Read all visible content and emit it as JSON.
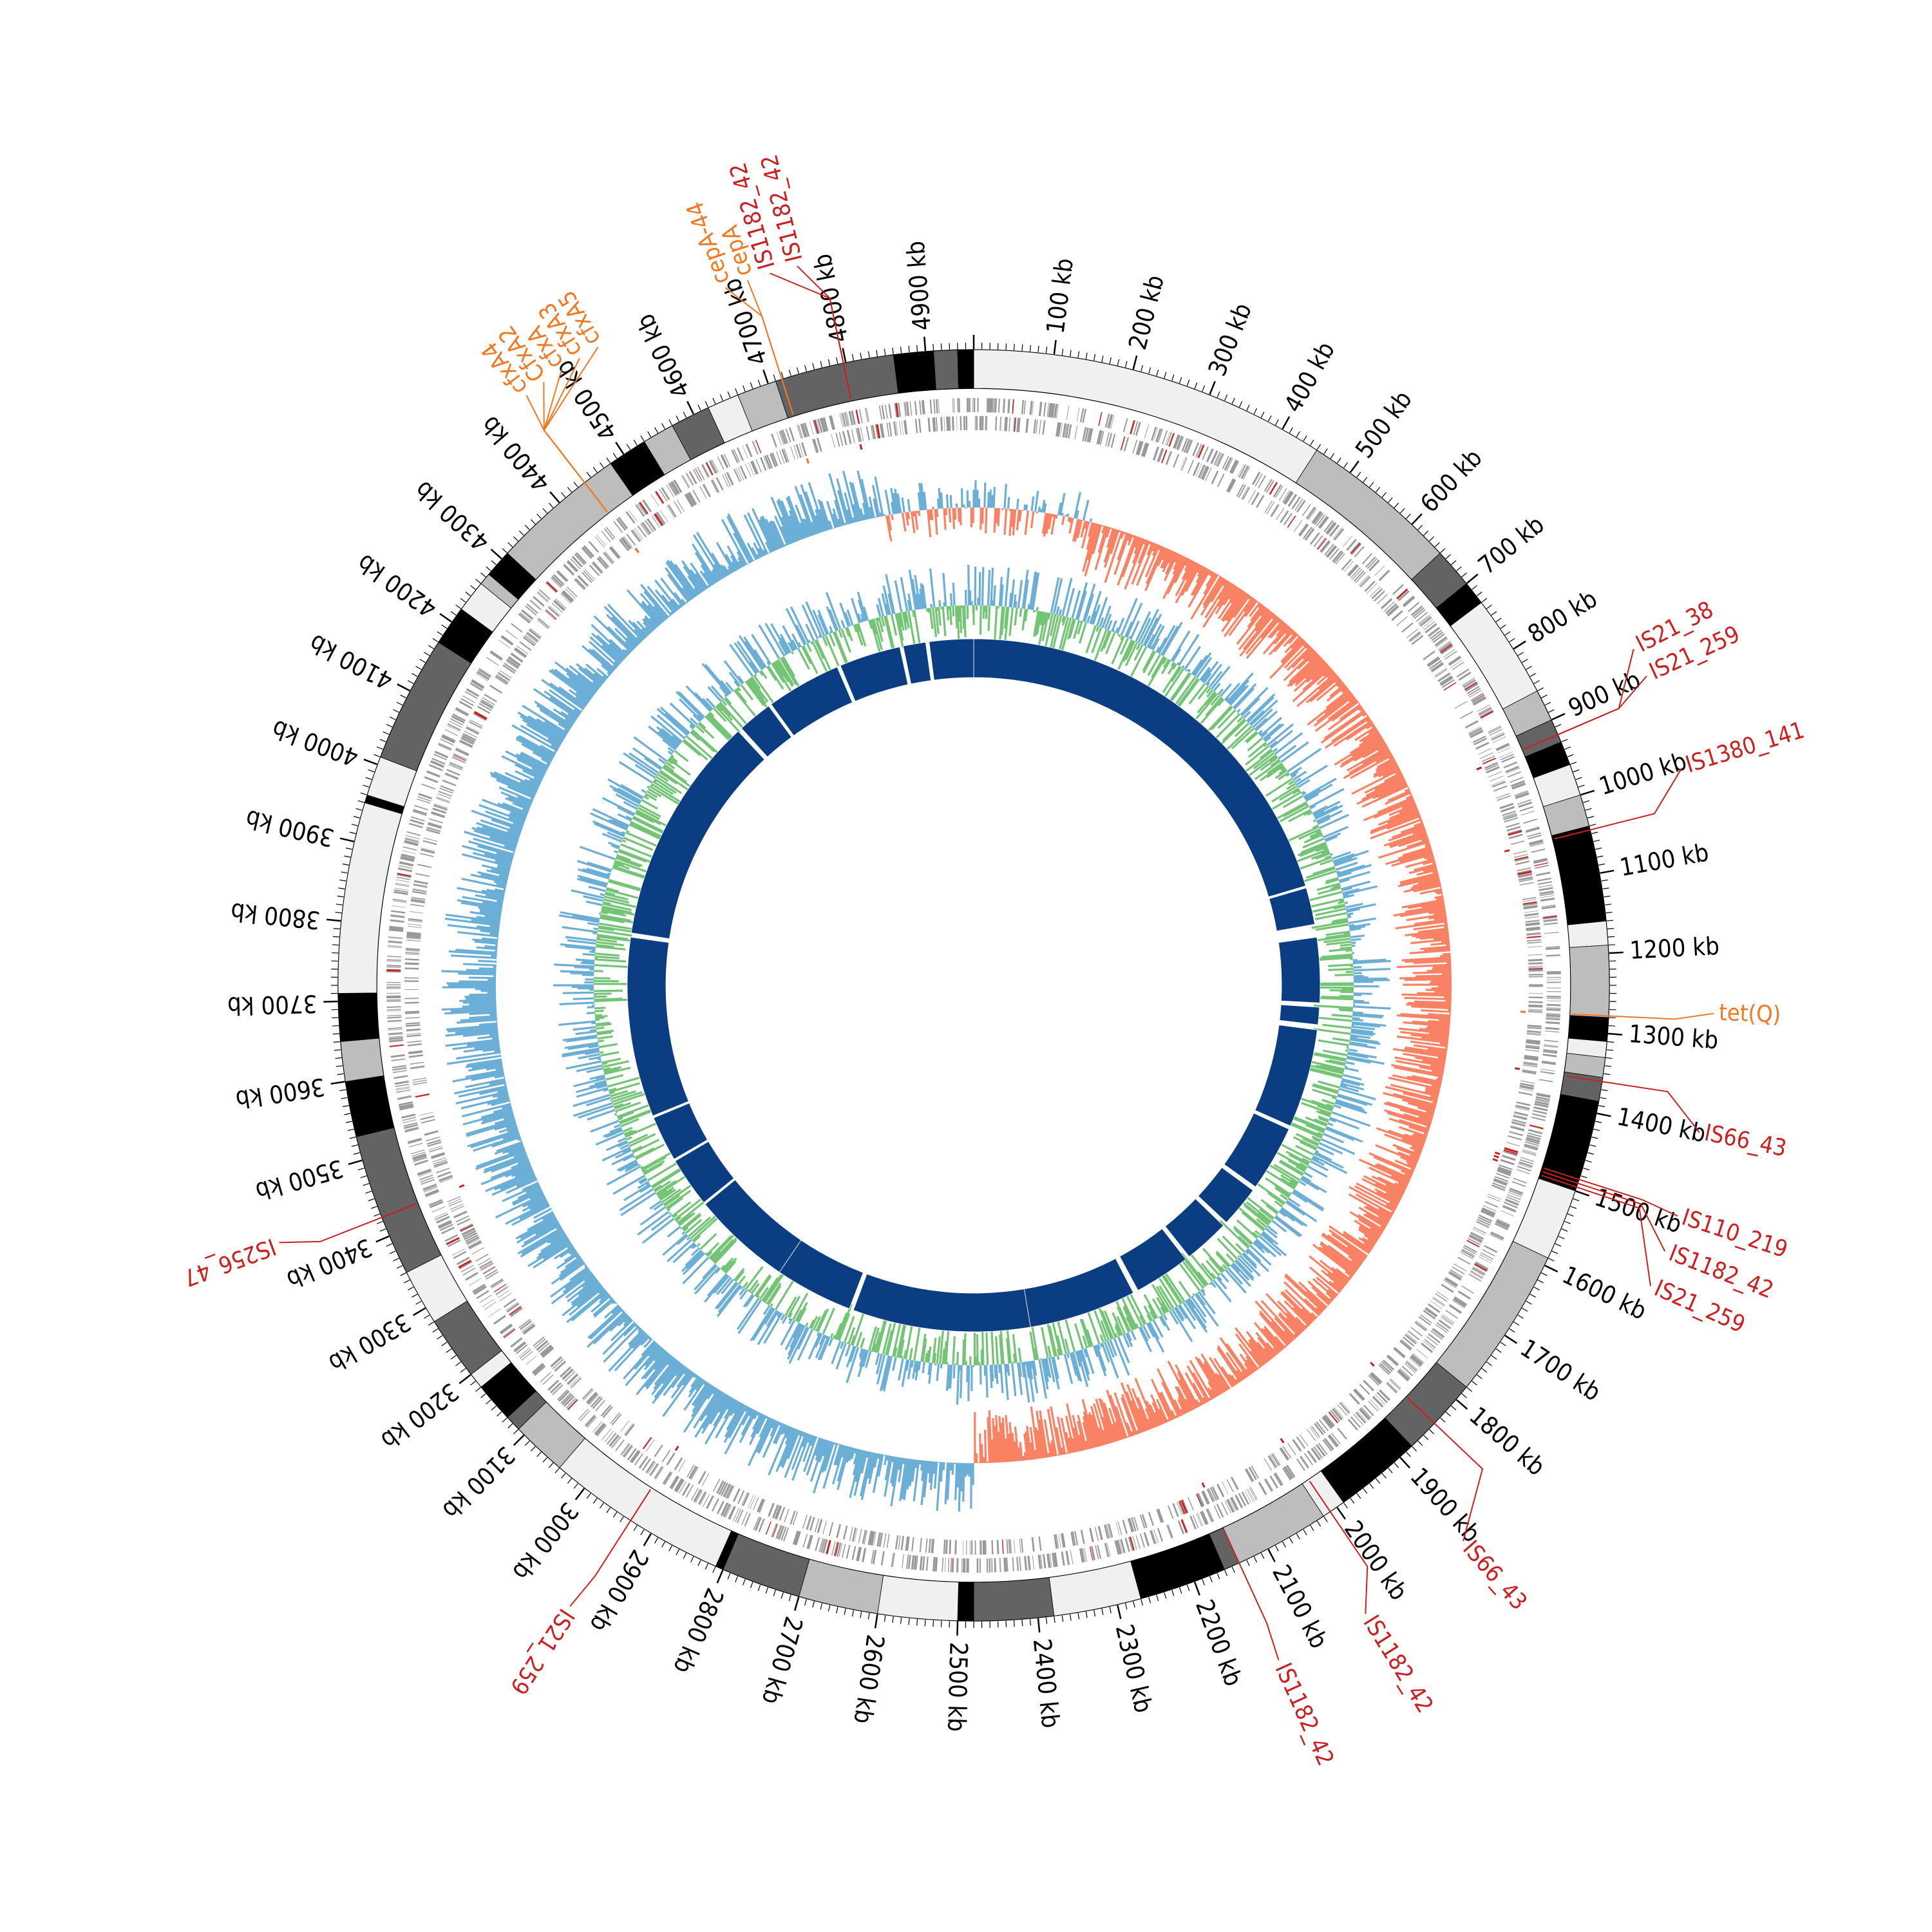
{
  "genome": {
    "length_kb": 4960,
    "scale_labels": [
      "100 kb",
      "200 kb",
      "300 kb",
      "400 kb",
      "500 kb",
      "600 kb",
      "700 kb",
      "800 kb",
      "900 kb",
      "1000 kb",
      "1100 kb",
      "1200 kb",
      "1300 kb",
      "1400 kb",
      "1500 kb",
      "1600 kb",
      "1700 kb",
      "1800 kb",
      "1900 kb",
      "2000 kb",
      "2100 kb",
      "2200 kb",
      "2300 kb",
      "2400 kb",
      "2500 kb",
      "2600 kb",
      "2700 kb",
      "2800 kb",
      "2900 kb",
      "3000 kb",
      "3100 kb",
      "3200 kb",
      "3300 kb",
      "3400 kb",
      "3500 kb",
      "3600 kb",
      "3700 kb",
      "3800 kb",
      "3900 kb",
      "4000 kb",
      "4100 kb",
      "4200 kb",
      "4300 kb",
      "4400 kb",
      "4500 kb",
      "4600 kb",
      "4700 kb",
      "4800 kb",
      "4900 kb"
    ]
  },
  "colors": {
    "is_element": "#cc1f1f",
    "resistance_gene": "#f07820",
    "gc_skew_negative": "#fa8264",
    "gc_skew_positive": "#6baed6",
    "gc_content_low": "#74c476",
    "gc_content_high": "#6baed6",
    "alignment_block": "#0a3d82",
    "gene_track": "#999999"
  },
  "contig_bands": [
    {
      "start": 0,
      "end": 450,
      "shade": "#f0f0f0"
    },
    {
      "start": 450,
      "end": 650,
      "shade": "#bdbdbd"
    },
    {
      "start": 650,
      "end": 700,
      "shade": "#636363"
    },
    {
      "start": 700,
      "end": 730,
      "shade": "#000000"
    },
    {
      "start": 730,
      "end": 860,
      "shade": "#f0f0f0"
    },
    {
      "start": 860,
      "end": 900,
      "shade": "#bdbdbd"
    },
    {
      "start": 900,
      "end": 930,
      "shade": "#636363"
    },
    {
      "start": 930,
      "end": 960,
      "shade": "#000000"
    },
    {
      "start": 960,
      "end": 1000,
      "shade": "#f0f0f0"
    },
    {
      "start": 1000,
      "end": 1040,
      "shade": "#bdbdbd"
    },
    {
      "start": 1040,
      "end": 1160,
      "shade": "#000000"
    },
    {
      "start": 1160,
      "end": 1190,
      "shade": "#f0f0f0"
    },
    {
      "start": 1190,
      "end": 1280,
      "shade": "#bdbdbd"
    },
    {
      "start": 1280,
      "end": 1310,
      "shade": "#000000"
    },
    {
      "start": 1310,
      "end": 1330,
      "shade": "#f0f0f0"
    },
    {
      "start": 1330,
      "end": 1355,
      "shade": "#bdbdbd"
    },
    {
      "start": 1355,
      "end": 1385,
      "shade": "#636363"
    },
    {
      "start": 1385,
      "end": 1500,
      "shade": "#000000"
    },
    {
      "start": 1500,
      "end": 1590,
      "shade": "#f0f0f0"
    },
    {
      "start": 1590,
      "end": 1780,
      "shade": "#bdbdbd"
    },
    {
      "start": 1780,
      "end": 1880,
      "shade": "#636363"
    },
    {
      "start": 1880,
      "end": 1990,
      "shade": "#000000"
    },
    {
      "start": 1990,
      "end": 2020,
      "shade": "#f0f0f0"
    },
    {
      "start": 2020,
      "end": 2140,
      "shade": "#bdbdbd"
    },
    {
      "start": 2140,
      "end": 2160,
      "shade": "#636363"
    },
    {
      "start": 2160,
      "end": 2270,
      "shade": "#000000"
    },
    {
      "start": 2270,
      "end": 2380,
      "shade": "#f0f0f0"
    },
    {
      "start": 2380,
      "end": 2480,
      "shade": "#636363"
    },
    {
      "start": 2480,
      "end": 2500,
      "shade": "#000000"
    },
    {
      "start": 2500,
      "end": 2600,
      "shade": "#f0f0f0"
    },
    {
      "start": 2600,
      "end": 2700,
      "shade": "#bdbdbd"
    },
    {
      "start": 2700,
      "end": 2800,
      "shade": "#636363"
    },
    {
      "start": 2800,
      "end": 2810,
      "shade": "#000000"
    },
    {
      "start": 2810,
      "end": 3040,
      "shade": "#f0f0f0"
    },
    {
      "start": 3040,
      "end": 3110,
      "shade": "#bdbdbd"
    },
    {
      "start": 3110,
      "end": 3130,
      "shade": "#636363"
    },
    {
      "start": 3130,
      "end": 3180,
      "shade": "#000000"
    },
    {
      "start": 3180,
      "end": 3200,
      "shade": "#f0f0f0"
    },
    {
      "start": 3200,
      "end": 3280,
      "shade": "#636363"
    },
    {
      "start": 3280,
      "end": 3350,
      "shade": "#f0f0f0"
    },
    {
      "start": 3350,
      "end": 3530,
      "shade": "#636363"
    },
    {
      "start": 3530,
      "end": 3600,
      "shade": "#000000"
    },
    {
      "start": 3600,
      "end": 3650,
      "shade": "#bdbdbd"
    },
    {
      "start": 3650,
      "end": 3710,
      "shade": "#000000"
    },
    {
      "start": 3710,
      "end": 3950,
      "shade": "#f0f0f0"
    },
    {
      "start": 3950,
      "end": 3960,
      "shade": "#000000"
    },
    {
      "start": 3960,
      "end": 4010,
      "shade": "#f0f0f0"
    },
    {
      "start": 4010,
      "end": 4170,
      "shade": "#636363"
    },
    {
      "start": 4170,
      "end": 4220,
      "shade": "#000000"
    },
    {
      "start": 4220,
      "end": 4260,
      "shade": "#f0f0f0"
    },
    {
      "start": 4260,
      "end": 4275,
      "shade": "#bdbdbd"
    },
    {
      "start": 4275,
      "end": 4310,
      "shade": "#000000"
    },
    {
      "start": 4310,
      "end": 4480,
      "shade": "#bdbdbd"
    },
    {
      "start": 4480,
      "end": 4530,
      "shade": "#000000"
    },
    {
      "start": 4530,
      "end": 4570,
      "shade": "#bdbdbd"
    },
    {
      "start": 4570,
      "end": 4620,
      "shade": "#636363"
    },
    {
      "start": 4620,
      "end": 4660,
      "shade": "#f0f0f0"
    },
    {
      "start": 4660,
      "end": 4710,
      "shade": "#bdbdbd"
    },
    {
      "start": 4710,
      "end": 4860,
      "shade": "#636363"
    },
    {
      "start": 4860,
      "end": 4910,
      "shade": "#000000"
    },
    {
      "start": 4910,
      "end": 4940,
      "shade": "#636363"
    },
    {
      "start": 4940,
      "end": 4960,
      "shade": "#000000"
    }
  ],
  "alignment_blocks": [
    {
      "start": 0,
      "end": 1010
    },
    {
      "start": 1015,
      "end": 1100
    },
    {
      "start": 1130,
      "end": 1280
    },
    {
      "start": 1290,
      "end": 1330
    },
    {
      "start": 1342,
      "end": 1570
    },
    {
      "start": 1578,
      "end": 1730
    },
    {
      "start": 1740,
      "end": 1835
    },
    {
      "start": 1845,
      "end": 1950
    },
    {
      "start": 1960,
      "end": 2090
    },
    {
      "start": 2102,
      "end": 2350
    },
    {
      "start": 2350,
      "end": 2760
    },
    {
      "start": 2770,
      "end": 2950
    },
    {
      "start": 2950,
      "end": 3180
    },
    {
      "start": 3185,
      "end": 3300
    },
    {
      "start": 3305,
      "end": 3410
    },
    {
      "start": 3415,
      "end": 3830
    },
    {
      "start": 3840,
      "end": 4370
    },
    {
      "start": 4380,
      "end": 4460
    },
    {
      "start": 4467,
      "end": 4640
    },
    {
      "start": 4648,
      "end": 4790
    },
    {
      "start": 4798,
      "end": 4850
    },
    {
      "start": 4858,
      "end": 4960
    }
  ],
  "annotations": [
    {
      "label": "IS1182_42",
      "type": "is",
      "pos": 4797,
      "label_pos": 4770
    },
    {
      "label": "IS1182_42",
      "type": "is",
      "pos": 4797,
      "label_pos": 4740
    },
    {
      "label": "cepA",
      "type": "ar",
      "pos": 4718,
      "label_pos": 4715
    },
    {
      "label": "cepA-44",
      "type": "ar",
      "pos": 4718,
      "label_pos": 4690
    },
    {
      "label": "cfxA5",
      "type": "ar",
      "pos": 4440,
      "label_pos": 4540
    },
    {
      "label": "cfxA3",
      "type": "ar",
      "pos": 4440,
      "label_pos": 4517
    },
    {
      "label": "cfxA",
      "type": "ar",
      "pos": 4440,
      "label_pos": 4494
    },
    {
      "label": "CfxA2",
      "type": "ar",
      "pos": 4440,
      "label_pos": 4471
    },
    {
      "label": "cfxA4",
      "type": "ar",
      "pos": 4440,
      "label_pos": 4448
    },
    {
      "label": "IS21_38",
      "type": "is",
      "pos": 920,
      "label_pos": 868
    },
    {
      "label": "IS21_259",
      "type": "is",
      "pos": 920,
      "label_pos": 900
    },
    {
      "label": "IS1380_141",
      "type": "is",
      "pos": 1045,
      "label_pos": 1005
    },
    {
      "label": "tet(Q)",
      "type": "ar",
      "pos": 1278,
      "label_pos": 1270
    },
    {
      "label": "IS66_43",
      "type": "is",
      "pos": 1360,
      "label_pos": 1398
    },
    {
      "label": "IS110_219",
      "type": "is",
      "pos": 1485,
      "label_pos": 1490
    },
    {
      "label": "IS1182_42",
      "type": "is",
      "pos": 1490,
      "label_pos": 1530
    },
    {
      "label": "IS21_259",
      "type": "is",
      "pos": 1495,
      "label_pos": 1570
    },
    {
      "label": "IS66_43",
      "type": "is",
      "pos": 1840,
      "label_pos": 1910
    },
    {
      "label": "IS1182_42",
      "type": "is",
      "pos": 2010,
      "label_pos": 2040
    },
    {
      "label": "IS1182_42",
      "type": "is",
      "pos": 2140,
      "label_pos": 2145
    },
    {
      "label": "IS21_259",
      "type": "is",
      "pos": 2930,
      "label_pos": 2935
    },
    {
      "label": "IS256_47",
      "type": "is",
      "pos": 3425,
      "label_pos": 3440
    }
  ]
}
